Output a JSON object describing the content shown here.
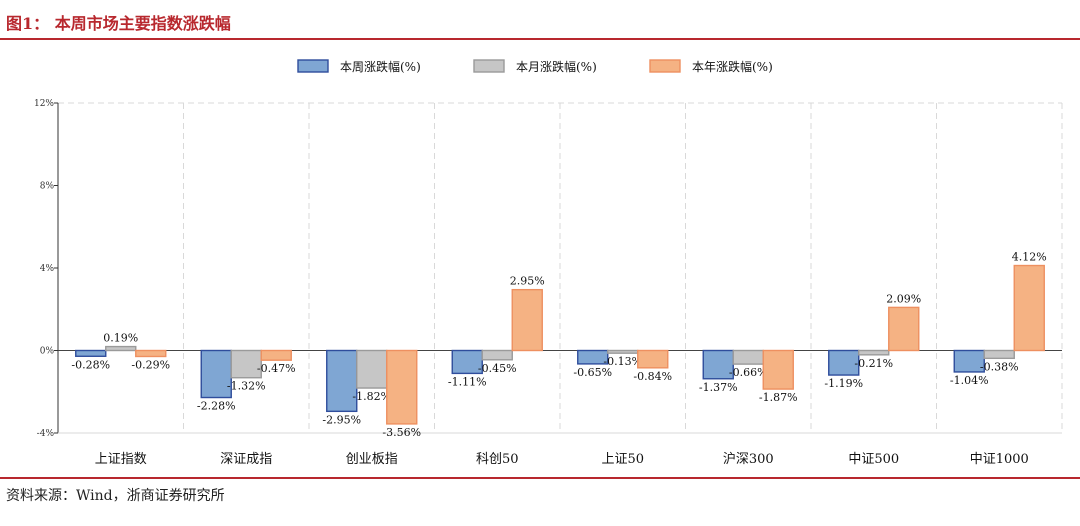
{
  "figure": {
    "title": "图1：  本周市场主要指数涨跌幅",
    "source": "资料来源：Wind，浙商证券研究所"
  },
  "colors": {
    "week": "#7fa6d3",
    "week_stroke": "#2f4d9c",
    "month": "#c6c6c6",
    "month_stroke": "#9a9a9a",
    "year": "#f5b283",
    "year_stroke": "#ee9060",
    "rule": "#b8282e"
  },
  "chart_data": {
    "type": "bar",
    "categories": [
      "上证指数",
      "深证成指",
      "创业板指",
      "科创50",
      "上证50",
      "沪深300",
      "中证500",
      "中证1000"
    ],
    "series": [
      {
        "name": "本周涨跌幅(%)",
        "values": [
          -0.28,
          -2.28,
          -2.95,
          -1.11,
          -0.65,
          -1.37,
          -1.19,
          -1.04
        ],
        "labels": [
          "-0.28%",
          "-2.28%",
          "-2.95%",
          "-1.11%",
          "-0.65%",
          "-1.37%",
          "-1.19%",
          "-1.04%"
        ]
      },
      {
        "name": "本月涨跌幅(%)",
        "values": [
          0.19,
          -1.32,
          -1.82,
          -0.45,
          -0.13,
          -0.66,
          -0.21,
          -0.38
        ],
        "labels": [
          "0.19%",
          "-1.32%",
          "-1.82%",
          "-0.45%",
          "-0.13%",
          "-0.66%",
          "-0.21%",
          "-0.38%"
        ]
      },
      {
        "name": "本年涨跌幅(%)",
        "values": [
          -0.29,
          -0.47,
          -3.56,
          2.95,
          -0.84,
          -1.87,
          2.09,
          4.12
        ],
        "labels": [
          "-0.29%",
          "-0.47%",
          "-3.56%",
          "2.95%",
          "-0.84%",
          "-1.87%",
          "2.09%",
          "4.12%"
        ]
      }
    ],
    "yticks": [
      -4,
      0,
      4,
      8,
      12
    ],
    "ytick_labels": [
      "-4%",
      "0%",
      "4%",
      "8%",
      "12%"
    ],
    "ylim": [
      -4,
      12
    ],
    "grid": true,
    "legend": "top-center"
  }
}
